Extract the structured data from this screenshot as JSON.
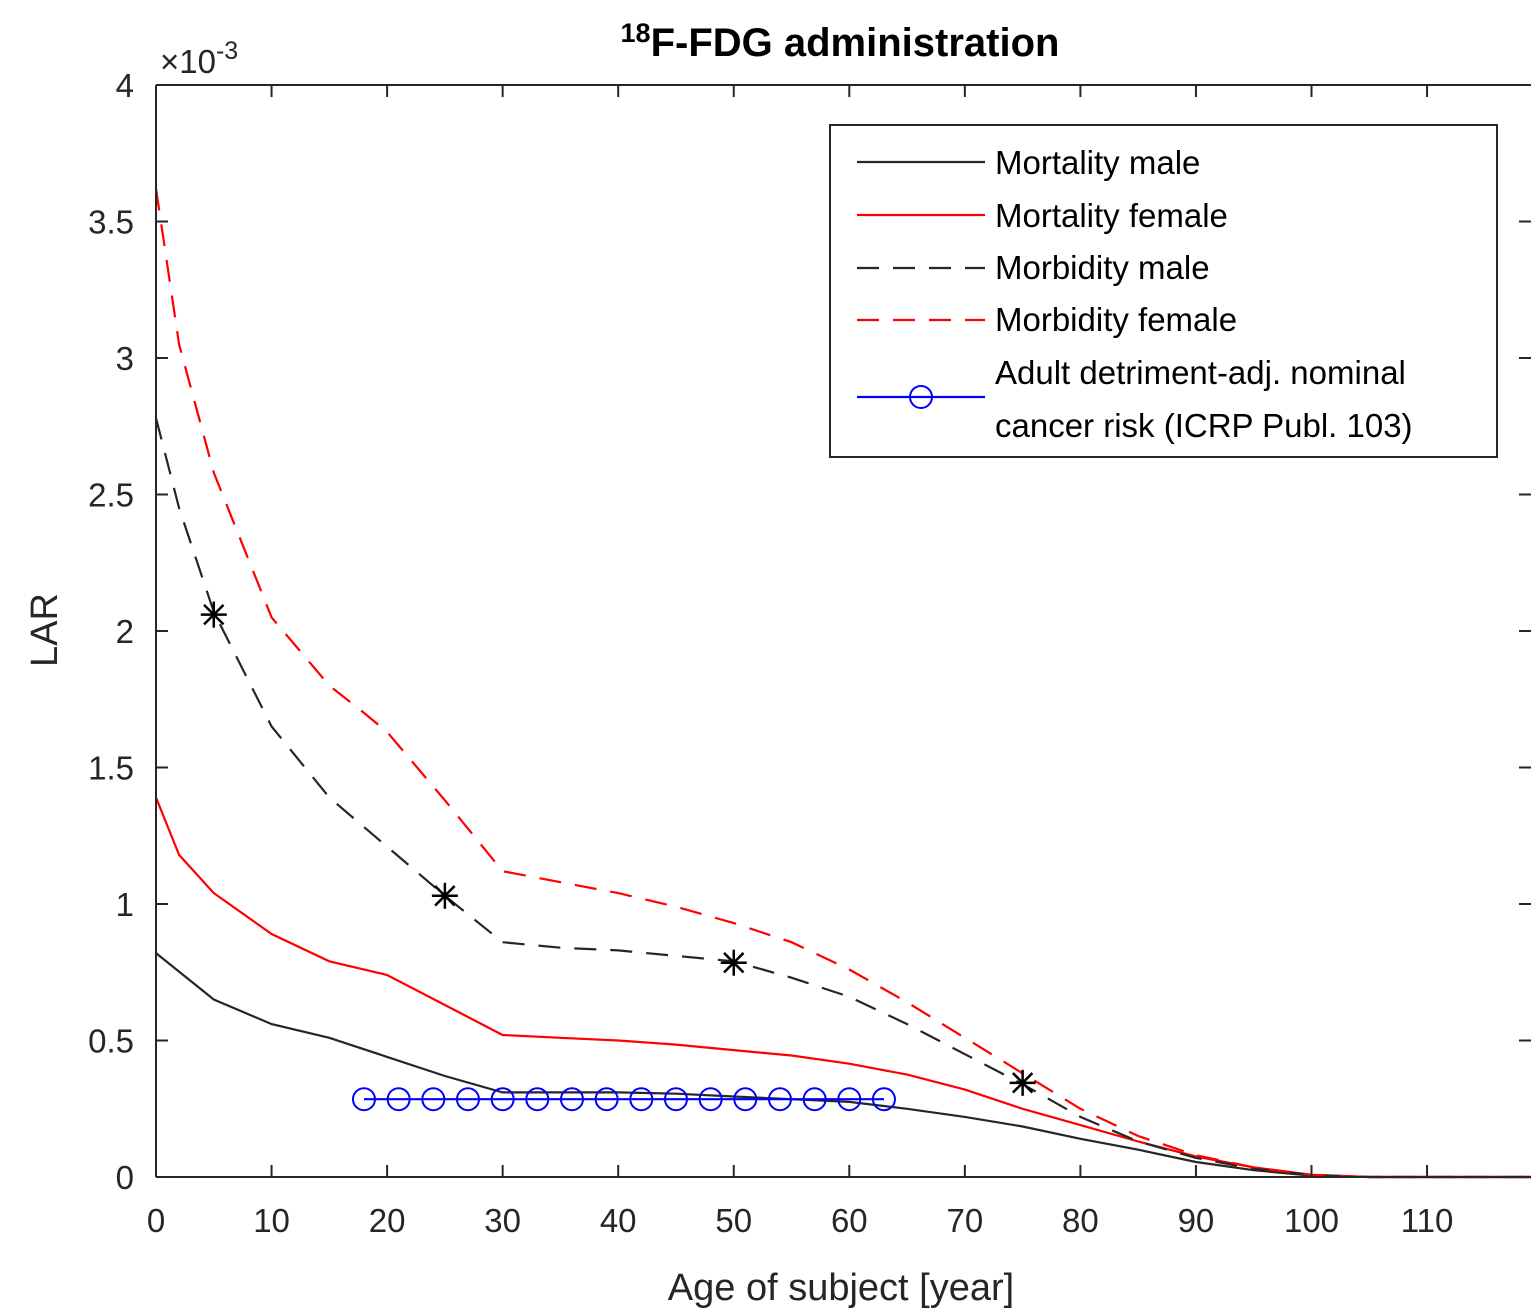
{
  "chart_data": {
    "type": "line",
    "title": {
      "sup": "18",
      "main": "F-FDG administration"
    },
    "xlabel": "Age of subject [year]",
    "ylabel": "LAR",
    "y_exponent": {
      "base": "×10",
      "exp": "-3"
    },
    "xlim": [
      0,
      120
    ],
    "ylim": [
      0,
      4
    ],
    "x_ticks": [
      0,
      10,
      20,
      30,
      40,
      50,
      60,
      70,
      80,
      90,
      100,
      110
    ],
    "x_tick_labels": [
      "0",
      "10",
      "20",
      "30",
      "40",
      "50",
      "60",
      "70",
      "80",
      "90",
      "100",
      "110"
    ],
    "y_ticks": [
      0,
      0.5,
      1,
      1.5,
      2,
      2.5,
      3,
      3.5,
      4
    ],
    "y_tick_labels": [
      "0",
      "0.5",
      "1",
      "1.5",
      "2",
      "2.5",
      "3",
      "3.5",
      "4"
    ],
    "grid": false,
    "legend_position": "top-right",
    "series": [
      {
        "name": "Mortality male",
        "color": "#262626",
        "dash": "solid",
        "x": [
          0,
          5,
          10,
          15,
          20,
          25,
          30,
          35,
          40,
          45,
          50,
          55,
          60,
          65,
          70,
          75,
          80,
          85,
          90,
          95,
          100,
          105,
          110,
          120
        ],
        "y": [
          0.82,
          0.65,
          0.56,
          0.51,
          0.44,
          0.37,
          0.31,
          0.31,
          0.31,
          0.305,
          0.295,
          0.285,
          0.275,
          0.25,
          0.22,
          0.185,
          0.14,
          0.1,
          0.055,
          0.025,
          0.005,
          0.0,
          0.0,
          0.0
        ]
      },
      {
        "name": "Mortality female",
        "color": "#ff0000",
        "dash": "solid",
        "x": [
          0,
          2,
          5,
          10,
          15,
          20,
          25,
          30,
          35,
          40,
          45,
          50,
          55,
          60,
          65,
          70,
          75,
          80,
          85,
          90,
          95,
          100,
          105,
          110,
          120
        ],
        "y": [
          1.39,
          1.18,
          1.04,
          0.89,
          0.79,
          0.74,
          0.63,
          0.52,
          0.51,
          0.5,
          0.485,
          0.465,
          0.445,
          0.415,
          0.375,
          0.32,
          0.25,
          0.19,
          0.13,
          0.075,
          0.035,
          0.008,
          0.0,
          0.0,
          0.0
        ]
      },
      {
        "name": "Morbidity male",
        "color": "#262626",
        "dash": "dashed",
        "x": [
          0,
          2,
          5,
          10,
          15,
          20,
          25,
          30,
          35,
          40,
          45,
          50,
          55,
          60,
          65,
          70,
          75,
          80,
          85,
          90,
          95,
          100,
          105,
          110,
          120
        ],
        "y": [
          2.78,
          2.45,
          2.07,
          1.65,
          1.39,
          1.21,
          1.03,
          0.86,
          0.84,
          0.83,
          0.81,
          0.79,
          0.73,
          0.66,
          0.56,
          0.45,
          0.34,
          0.22,
          0.13,
          0.07,
          0.03,
          0.008,
          0.0,
          0.0,
          0.0
        ]
      },
      {
        "name": "Morbidity female",
        "color": "#ff0000",
        "dash": "dashed",
        "x": [
          0,
          2,
          5,
          10,
          15,
          18,
          20,
          25,
          30,
          35,
          40,
          45,
          50,
          55,
          60,
          65,
          70,
          75,
          80,
          85,
          90,
          95,
          100,
          105,
          110,
          120
        ],
        "y": [
          3.62,
          3.05,
          2.58,
          2.05,
          1.8,
          1.7,
          1.63,
          1.38,
          1.12,
          1.08,
          1.04,
          0.99,
          0.93,
          0.86,
          0.76,
          0.64,
          0.51,
          0.38,
          0.25,
          0.15,
          0.08,
          0.035,
          0.008,
          0.0,
          0.0,
          0.0
        ]
      },
      {
        "name": "Adult detriment-adj. nominal cancer risk (ICRP Publ. 103)",
        "name_lines": [
          "Adult detriment-adj. nominal",
          "cancer risk (ICRP Publ. 103)"
        ],
        "color": "#0000ff",
        "dash": "solid",
        "marker": "circle",
        "x": [
          18,
          21,
          24,
          27,
          30,
          33,
          36,
          39,
          42,
          45,
          48,
          51,
          54,
          57,
          60,
          63
        ],
        "y": [
          0.285,
          0.285,
          0.285,
          0.285,
          0.285,
          0.285,
          0.285,
          0.285,
          0.285,
          0.285,
          0.285,
          0.285,
          0.285,
          0.285,
          0.285,
          0.285
        ]
      }
    ],
    "star_markers": {
      "color": "#000000",
      "x": [
        5,
        25,
        50,
        75
      ],
      "y": [
        2.06,
        1.03,
        0.785,
        0.345
      ]
    }
  }
}
